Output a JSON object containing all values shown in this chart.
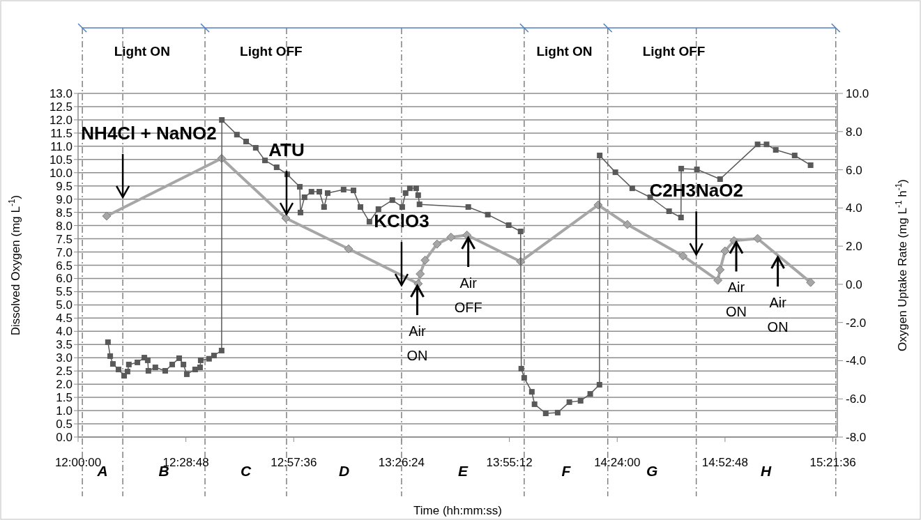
{
  "chart_data": {
    "type": "line",
    "xlabel": "Time (hh:mm:ss)",
    "ylabel": "Dissolved Oxygen (mg L$^{-1}$)",
    "y2label": "Oxygen Uptake Rate (mg L$^{-1}$ h$^{-1}$)",
    "xlim": [
      12,
      15.38
    ],
    "xticks": [
      {
        "value": 12,
        "label": "12:00:00"
      },
      {
        "value": 12.48,
        "label": "12:28:48"
      },
      {
        "value": 12.96,
        "label": "12:57:36"
      },
      {
        "value": 13.44,
        "label": "13:26:24"
      },
      {
        "value": 13.92,
        "label": "13:55:12"
      },
      {
        "value": 14.4,
        "label": "14:24:00"
      },
      {
        "value": 14.88,
        "label": "14:52:48"
      },
      {
        "value": 15.36,
        "label": "15:21:36"
      }
    ],
    "ylim": [
      0,
      13
    ],
    "yticks": [
      {
        "value": 0,
        "label": "0.0"
      },
      {
        "value": 0.5,
        "label": "0.5"
      },
      {
        "value": 1,
        "label": "1.0"
      },
      {
        "value": 1.5,
        "label": "1.5"
      },
      {
        "value": 2,
        "label": "2.0"
      },
      {
        "value": 2.5,
        "label": "2.5"
      },
      {
        "value": 3,
        "label": "3.0"
      },
      {
        "value": 3.5,
        "label": "3.5"
      },
      {
        "value": 4,
        "label": "4.0"
      },
      {
        "value": 4.5,
        "label": "4.5"
      },
      {
        "value": 5,
        "label": "5.0"
      },
      {
        "value": 5.5,
        "label": "5.5"
      },
      {
        "value": 6,
        "label": "6.0"
      },
      {
        "value": 6.5,
        "label": "6.5"
      },
      {
        "value": 7,
        "label": "7.0"
      },
      {
        "value": 7.5,
        "label": "7.5"
      },
      {
        "value": 8,
        "label": "8.0"
      },
      {
        "value": 8.5,
        "label": "8.5"
      },
      {
        "value": 9,
        "label": "9.0"
      },
      {
        "value": 9.5,
        "label": "9.5"
      },
      {
        "value": 10,
        "label": "10.0"
      },
      {
        "value": 10.5,
        "label": "10.5"
      },
      {
        "value": 11,
        "label": "11.0"
      },
      {
        "value": 11.5,
        "label": "11.5"
      },
      {
        "value": 12,
        "label": "12.0"
      },
      {
        "value": 12.5,
        "label": "12.5"
      },
      {
        "value": 13,
        "label": "13.0"
      }
    ],
    "y2lim": [
      -8,
      10
    ],
    "y2ticks": [
      {
        "value": -8,
        "label": "-8.0"
      },
      {
        "value": -6,
        "label": "-6.0"
      },
      {
        "value": -4,
        "label": "-4.0"
      },
      {
        "value": -2,
        "label": "-2.0"
      },
      {
        "value": 0,
        "label": "0.0"
      },
      {
        "value": 2,
        "label": "2.0"
      },
      {
        "value": 4,
        "label": "4.0"
      },
      {
        "value": 6,
        "label": "6.0"
      },
      {
        "value": 8,
        "label": "8.0"
      },
      {
        "value": 10,
        "label": "10.0"
      }
    ],
    "grid": "y",
    "series": [
      {
        "color": "#a6a6a6",
        "marker": "diamond",
        "x": [
          12.127,
          12.639,
          12.925,
          13.204,
          13.514,
          13.523,
          13.545,
          13.598,
          13.66,
          13.731,
          13.97,
          14.315,
          14.445,
          14.693,
          14.848,
          14.858,
          14.88,
          14.92,
          15.025,
          15.261
        ],
        "values": [
          8.36,
          10.54,
          8.28,
          7.12,
          5.8,
          6.17,
          6.69,
          7.3,
          7.56,
          7.64,
          6.64,
          8.78,
          8.04,
          6.85,
          5.93,
          6.33,
          7.04,
          7.43,
          7.51,
          5.85
        ]
      },
      {
        "color": "#595959",
        "marker": "square",
        "axis": "y2",
        "x": [
          12.133,
          12.143,
          12.155,
          12.18,
          12.205,
          12.22,
          12.226,
          12.264,
          12.295,
          12.31,
          12.313,
          12.344,
          12.388,
          12.419,
          12.45,
          12.469,
          12.484,
          12.521,
          12.543,
          12.546,
          12.583,
          12.605,
          12.639,
          12.64,
          12.707,
          12.748,
          12.791,
          12.832,
          12.884,
          12.931,
          12.987,
          12.99,
          13.008,
          13.039,
          13.074,
          13.095,
          13.111,
          13.182,
          13.226,
          13.257,
          13.297,
          13.337,
          13.399,
          13.443,
          13.458,
          13.477,
          13.505,
          13.514,
          13.52,
          13.737,
          13.824,
          13.917,
          13.97,
          13.973,
          13.986,
          14.02,
          14.032,
          14.082,
          14.135,
          14.187,
          14.237,
          14.28,
          14.321,
          14.322,
          14.392,
          14.467,
          14.547,
          14.631,
          14.684,
          14.685,
          14.755,
          14.858,
          15.025,
          15.065,
          15.106,
          15.19,
          15.261
        ],
        "values": [
          -3.03,
          -3.76,
          -4.17,
          -4.46,
          -4.79,
          -4.57,
          -4.2,
          -4.09,
          -3.84,
          -3.98,
          -4.53,
          -4.35,
          -4.53,
          -4.2,
          -3.87,
          -4.2,
          -4.71,
          -4.46,
          -4.35,
          -3.98,
          -3.9,
          -3.73,
          -3.47,
          8.61,
          7.84,
          7.48,
          7.15,
          6.49,
          6.13,
          5.76,
          5.11,
          3.76,
          4.56,
          4.85,
          4.85,
          4.05,
          4.78,
          4.96,
          4.92,
          4.05,
          3.28,
          3.94,
          4.41,
          4.05,
          4.78,
          5.03,
          5.03,
          4.67,
          4.19,
          4.05,
          3.65,
          3.1,
          2.77,
          -4.42,
          -4.9,
          -5.63,
          -6.28,
          -6.76,
          -6.72,
          -6.17,
          -6.1,
          -5.74,
          -5.26,
          6.75,
          5.87,
          5.03,
          4.56,
          3.83,
          3.5,
          6.06,
          6.02,
          5.51,
          7.33,
          7.33,
          7.04,
          6.75,
          6.24
        ]
      }
    ],
    "ref_lines": [
      {
        "axis": "x",
        "value": 12.019,
        "line_style": "dashed",
        "label": "Light ON"
      },
      {
        "axis": "x",
        "value": 12.199,
        "line_style": "dashed"
      },
      {
        "axis": "x",
        "value": 12.565,
        "line_style": "dashed",
        "label": "Light OFF"
      },
      {
        "axis": "x",
        "value": 12.928,
        "line_style": "dashed"
      },
      {
        "axis": "x",
        "value": 13.44,
        "line_style": "dashed"
      },
      {
        "axis": "x",
        "value": 13.986,
        "line_style": "dashed",
        "label": "Light ON"
      },
      {
        "axis": "x",
        "value": 14.358,
        "line_style": "dashed",
        "label": "Light OFF"
      },
      {
        "axis": "x",
        "value": 14.752,
        "line_style": "dashed"
      },
      {
        "axis": "x",
        "value": 15.373,
        "line_style": "dashed"
      }
    ],
    "annotations": [
      {
        "text": "NH4Cl + NaNO2",
        "x": 12.199,
        "y": 11.5
      },
      {
        "text": "ATU",
        "x": 12.928,
        "y": 10.86
      },
      {
        "text": "KClO3",
        "x": 13.44,
        "y": 8.17
      },
      {
        "text": "C2H3NaO2",
        "x": 14.752,
        "y": 9.33
      },
      {
        "text": "Air ON",
        "x": 13.51,
        "y": 5.8
      },
      {
        "text": "Air OFF",
        "x": 13.737,
        "y": 7.62
      },
      {
        "text": "Air ON",
        "x": 14.93,
        "y": 7.45
      },
      {
        "text": "Air ON",
        "x": 15.115,
        "y": 6.88
      },
      "A",
      "B",
      "C",
      "D",
      "E",
      "F",
      "G",
      "H"
    ]
  }
}
